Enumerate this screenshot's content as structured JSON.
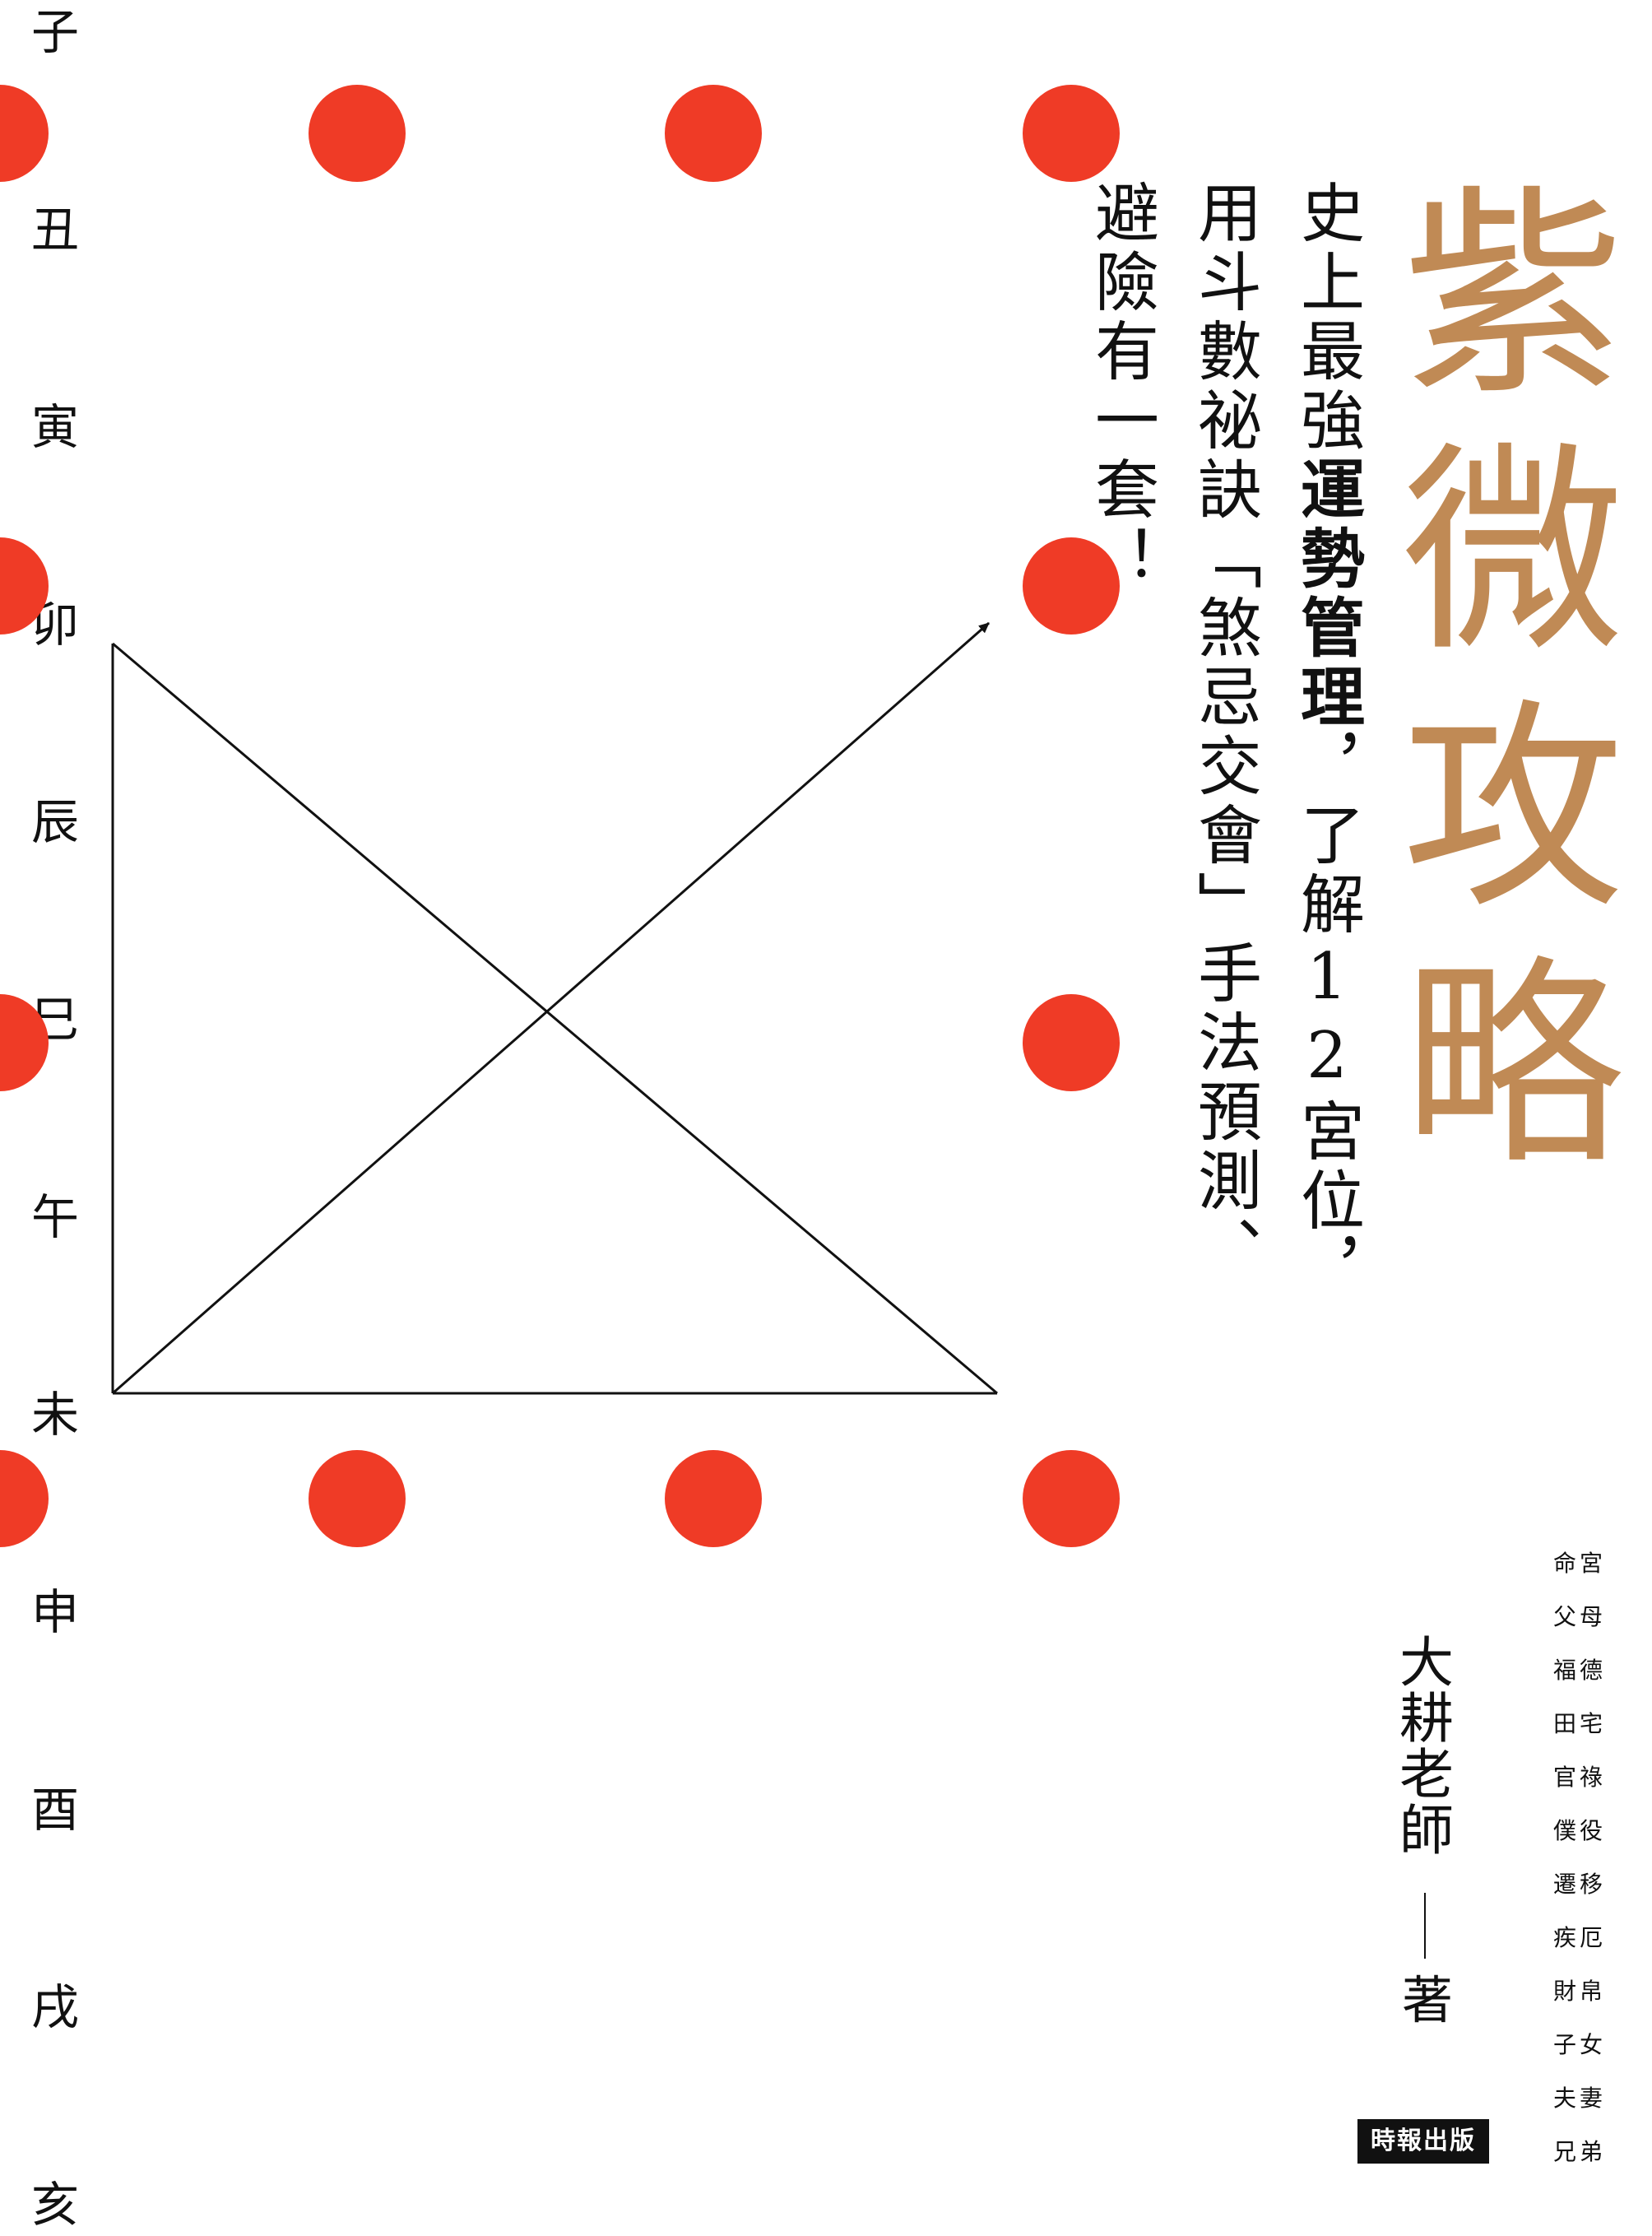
{
  "colors": {
    "accent_dot": "#ef3b26",
    "title": "#c08a55",
    "text": "#111111",
    "background": "#ffffff"
  },
  "earthly_branches": [
    "子",
    "丑",
    "寅",
    "卯",
    "辰",
    "巳",
    "午",
    "未",
    "申",
    "酉",
    "戌",
    "亥"
  ],
  "title": "紫微攻略",
  "tagline": {
    "line1": {
      "pre": "史上最強",
      "bold": "運勢管理",
      "post": "，了解12宮位，"
    },
    "line2": "用斗數祕訣「煞忌交會」手法預測、",
    "line3": "避險有一套！"
  },
  "author": {
    "name": "大耕老師",
    "suffix": "著"
  },
  "palaces": [
    "命宮",
    "父母",
    "福德",
    "田宅",
    "官祿",
    "僕役",
    "遷移",
    "疾厄",
    "財帛",
    "子女",
    "夫妻",
    "兄弟"
  ],
  "publisher": "時報出版"
}
